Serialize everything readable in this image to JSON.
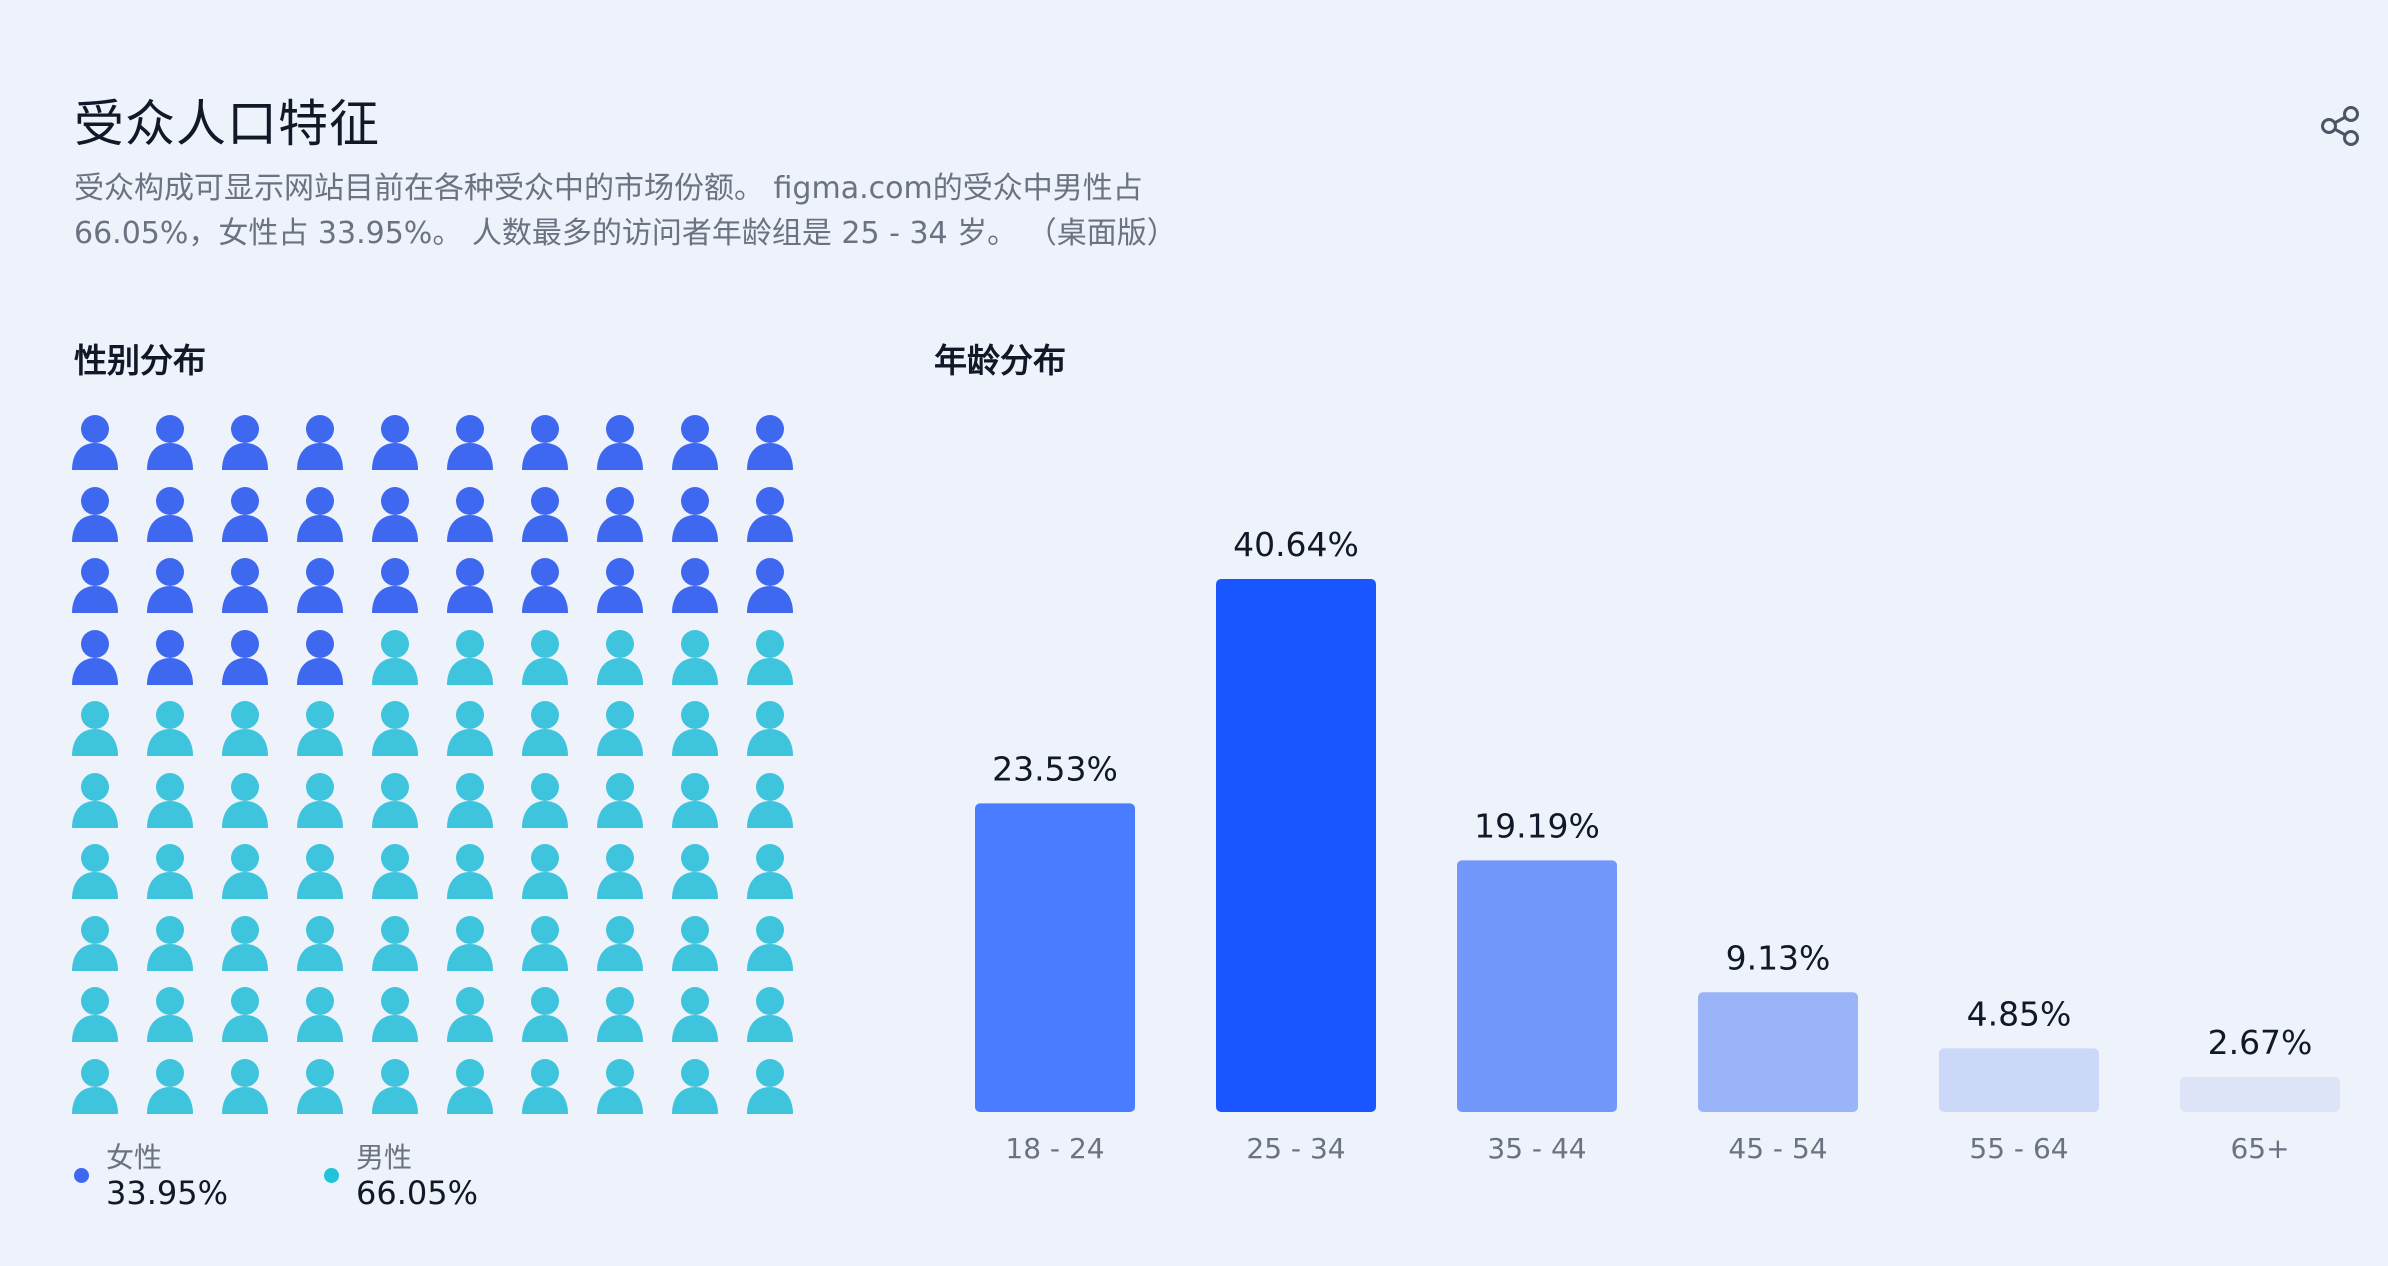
{
  "header": {
    "title": "受众人口特征",
    "description": "受众构成可显示网站目前在各种受众中的市场份额。 figma.com的受众中男性占 66.05%，女性占 33.95%。 人数最多的访问者年龄组是 25 - 34 岁。 （桌面版）",
    "share_icon": "share-icon"
  },
  "gender": {
    "title": "性别分布",
    "icon": "person-icon",
    "female_count": 34,
    "total": 100,
    "colors": {
      "female": "#3f68f0",
      "male": "#3fc4dd"
    },
    "legend": [
      {
        "label": "女性",
        "value": "33.95%",
        "color": "#3f68f0"
      },
      {
        "label": "男性",
        "value": "66.05%",
        "color": "#22c2dc"
      }
    ]
  },
  "age": {
    "title": "年龄分布"
  },
  "chart_data": {
    "type": "bar",
    "title": "年龄分布",
    "categories": [
      "18 - 24",
      "25 - 34",
      "35 - 44",
      "45 - 54",
      "55 - 64",
      "65+"
    ],
    "values": [
      23.53,
      40.64,
      19.19,
      9.13,
      4.85,
      2.67
    ],
    "value_labels": [
      "23.53%",
      "40.64%",
      "19.19%",
      "9.13%",
      "4.85%",
      "2.67%"
    ],
    "bar_colors": [
      "#4a7cff",
      "#1a56ff",
      "#7398fb",
      "#9bb4f8",
      "#ccd8f8",
      "#dde4f8"
    ],
    "ylim": [
      0,
      40.64
    ],
    "grid": false,
    "legend": "none"
  }
}
